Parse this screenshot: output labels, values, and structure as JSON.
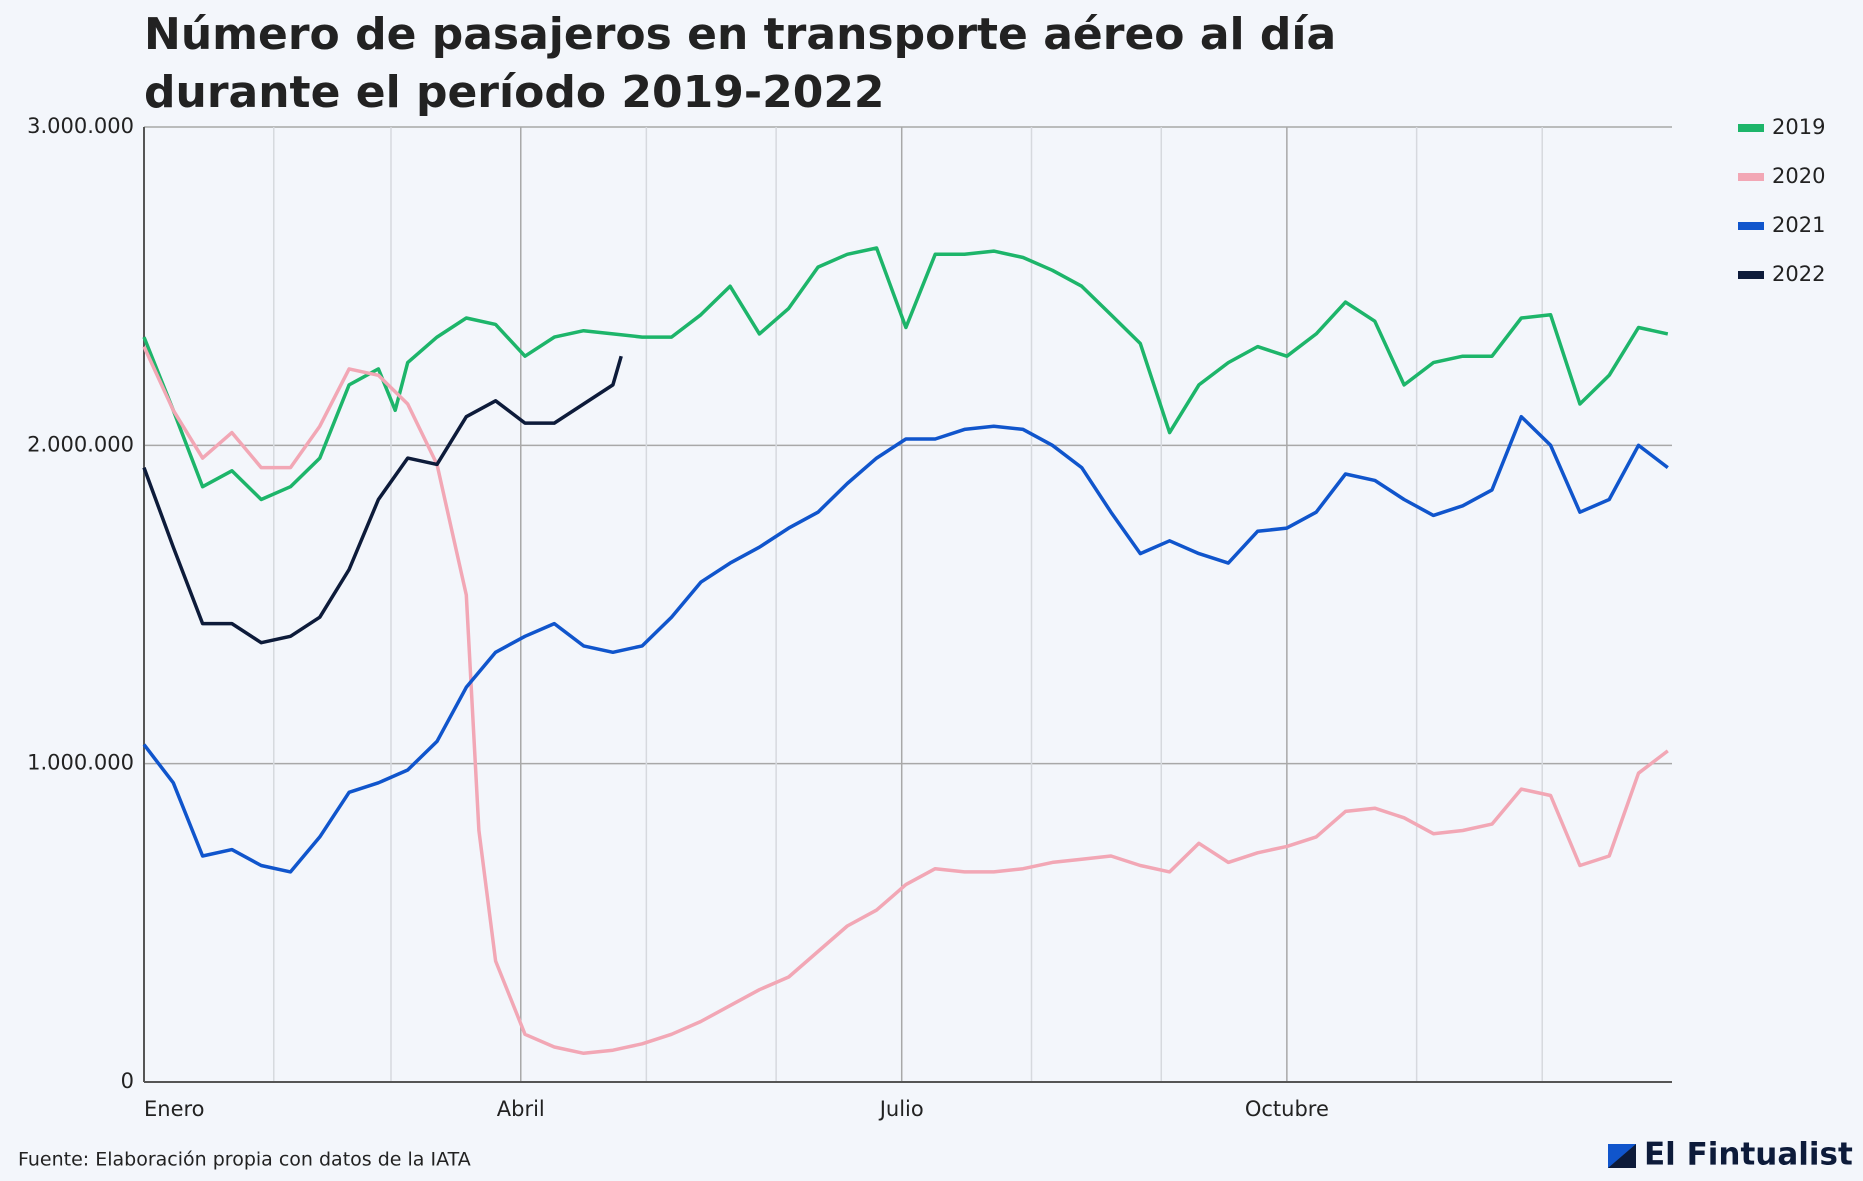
{
  "chart_data": {
    "type": "line",
    "title": "Número de pasajeros en transporte aéreo al día durante el período 2019-2022",
    "source": "Fuente: Elaboración propia con datos de la IATA",
    "brand": "El Fintualist",
    "xlim": [
      0,
      365
    ],
    "xticks": [
      {
        "value": 0,
        "label": "Enero"
      },
      {
        "value": 90,
        "label": "Abril"
      },
      {
        "value": 181,
        "label": "Julio"
      },
      {
        "value": 273,
        "label": "Octubre"
      }
    ],
    "xminor": [
      31,
      59,
      120,
      151,
      212,
      243,
      304,
      334
    ],
    "ylim": [
      0,
      3000000
    ],
    "yticks": [
      0,
      {
        "value": 1000000,
        "label": "1.000.000"
      },
      {
        "value": 2000000,
        "label": "2.000.000"
      },
      {
        "value": 3000000,
        "label": "3.000.000"
      }
    ],
    "grid": true,
    "legend": "right",
    "series": [
      {
        "name": "2019",
        "color": "#1db56a",
        "x": [
          0,
          7,
          14,
          21,
          28,
          35,
          42,
          49,
          56,
          60,
          63,
          70,
          77,
          84,
          91,
          98,
          105,
          112,
          119,
          126,
          133,
          140,
          147,
          154,
          161,
          168,
          175,
          182,
          189,
          196,
          203,
          210,
          217,
          224,
          231,
          238,
          245,
          252,
          259,
          266,
          273,
          280,
          287,
          294,
          301,
          308,
          315,
          322,
          329,
          336,
          343,
          350,
          357,
          364
        ],
        "values": [
          2340000,
          2110000,
          1870000,
          1920000,
          1830000,
          1870000,
          1960000,
          2190000,
          2240000,
          2110000,
          2260000,
          2340000,
          2400000,
          2380000,
          2280000,
          2340000,
          2360000,
          2350000,
          2340000,
          2340000,
          2410000,
          2500000,
          2350000,
          2430000,
          2560000,
          2600000,
          2620000,
          2370000,
          2600000,
          2600000,
          2610000,
          2590000,
          2550000,
          2500000,
          2410000,
          2320000,
          2040000,
          2190000,
          2260000,
          2310000,
          2280000,
          2350000,
          2450000,
          2390000,
          2190000,
          2260000,
          2280000,
          2280000,
          2400000,
          2410000,
          2130000,
          2220000,
          2370000,
          2350000
        ]
      },
      {
        "name": "2020",
        "color": "#f2a7b5",
        "x": [
          0,
          7,
          14,
          21,
          28,
          35,
          42,
          49,
          56,
          63,
          70,
          77,
          80,
          84,
          91,
          98,
          105,
          112,
          119,
          126,
          133,
          140,
          147,
          154,
          161,
          168,
          175,
          182,
          189,
          196,
          203,
          210,
          217,
          224,
          231,
          238,
          245,
          252,
          259,
          266,
          273,
          280,
          287,
          294,
          301,
          308,
          315,
          322,
          329,
          336,
          343,
          350,
          357,
          364
        ],
        "values": [
          2310000,
          2110000,
          1960000,
          2040000,
          1930000,
          1930000,
          2060000,
          2240000,
          2220000,
          2130000,
          1940000,
          1530000,
          790000,
          380000,
          150000,
          110000,
          90000,
          100000,
          120000,
          150000,
          190000,
          240000,
          290000,
          330000,
          410000,
          490000,
          540000,
          620000,
          670000,
          660000,
          660000,
          670000,
          690000,
          700000,
          710000,
          680000,
          660000,
          750000,
          690000,
          720000,
          740000,
          770000,
          850000,
          860000,
          830000,
          780000,
          790000,
          810000,
          920000,
          900000,
          680000,
          710000,
          970000,
          1040000
        ]
      },
      {
        "name": "2021",
        "color": "#1055cc",
        "x": [
          0,
          7,
          14,
          21,
          28,
          35,
          42,
          49,
          56,
          63,
          70,
          77,
          84,
          91,
          98,
          105,
          112,
          119,
          126,
          133,
          140,
          147,
          154,
          161,
          168,
          175,
          182,
          189,
          196,
          203,
          210,
          217,
          224,
          231,
          238,
          245,
          252,
          259,
          266,
          273,
          280,
          287,
          294,
          301,
          308,
          315,
          322,
          329,
          336,
          343,
          350,
          357,
          364
        ],
        "values": [
          1060000,
          940000,
          710000,
          730000,
          680000,
          660000,
          770000,
          910000,
          940000,
          980000,
          1070000,
          1240000,
          1350000,
          1400000,
          1440000,
          1370000,
          1350000,
          1370000,
          1460000,
          1570000,
          1630000,
          1680000,
          1740000,
          1790000,
          1880000,
          1960000,
          2020000,
          2020000,
          2050000,
          2060000,
          2050000,
          2000000,
          1930000,
          1790000,
          1660000,
          1700000,
          1660000,
          1630000,
          1730000,
          1740000,
          1790000,
          1910000,
          1890000,
          1830000,
          1780000,
          1810000,
          1860000,
          2090000,
          2000000,
          1790000,
          1830000,
          2000000,
          1930000
        ]
      },
      {
        "name": "2022",
        "color": "#0d1b3a",
        "x": [
          0,
          7,
          14,
          21,
          28,
          35,
          42,
          49,
          56,
          63,
          70,
          77,
          84,
          91,
          98,
          105,
          112,
          114
        ],
        "values": [
          1930000,
          1680000,
          1440000,
          1440000,
          1380000,
          1400000,
          1460000,
          1610000,
          1830000,
          1960000,
          1940000,
          2090000,
          2140000,
          2070000,
          2070000,
          2130000,
          2190000,
          2280000
        ]
      }
    ]
  }
}
